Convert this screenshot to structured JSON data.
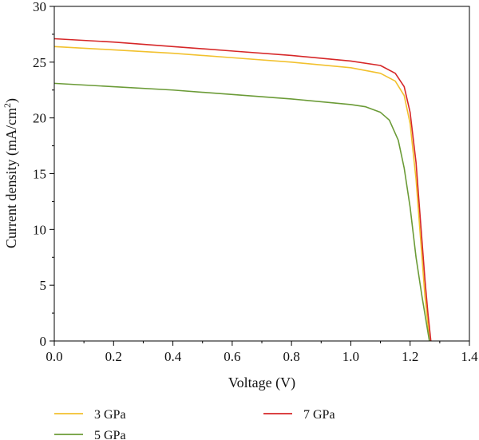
{
  "chart_data": {
    "type": "line",
    "xlabel": "Voltage (V)",
    "ylabel_main": "Current density (mA/cm",
    "ylabel_sup": "2",
    "ylabel_end": ")",
    "xlim": [
      0.0,
      1.4
    ],
    "ylim": [
      0,
      30
    ],
    "xticks": [
      0.0,
      0.2,
      0.4,
      0.6,
      0.8,
      1.0,
      1.2,
      1.4
    ],
    "xtick_labels": [
      "0.0",
      "0.2",
      "0.4",
      "0.6",
      "0.8",
      "1.0",
      "1.2",
      "1.4"
    ],
    "yticks": [
      0,
      5,
      10,
      15,
      20,
      25,
      30
    ],
    "ytick_labels": [
      "0",
      "5",
      "10",
      "15",
      "20",
      "25",
      "30"
    ],
    "grid": false,
    "legend_position": "bottom",
    "series": [
      {
        "name": "3 GPa",
        "color": "#f2c12e",
        "x": [
          0.0,
          0.2,
          0.4,
          0.6,
          0.8,
          1.0,
          1.1,
          1.15,
          1.18,
          1.2,
          1.22,
          1.24,
          1.25,
          1.26,
          1.265
        ],
        "y": [
          26.4,
          26.1,
          25.8,
          25.4,
          25.0,
          24.5,
          24.0,
          23.3,
          22.0,
          19.5,
          14.5,
          7.5,
          4.0,
          1.5,
          0.0
        ]
      },
      {
        "name": "7 GPa",
        "color": "#d62728",
        "x": [
          0.0,
          0.2,
          0.4,
          0.6,
          0.8,
          1.0,
          1.1,
          1.15,
          1.18,
          1.2,
          1.22,
          1.24,
          1.25,
          1.26,
          1.27
        ],
        "y": [
          27.1,
          26.8,
          26.4,
          26.0,
          25.6,
          25.1,
          24.7,
          24.0,
          22.8,
          20.5,
          16.0,
          9.0,
          5.5,
          2.5,
          0.0
        ]
      },
      {
        "name": "5 GPa",
        "color": "#6b9b37",
        "x": [
          0.0,
          0.2,
          0.4,
          0.6,
          0.8,
          1.0,
          1.05,
          1.1,
          1.13,
          1.16,
          1.18,
          1.2,
          1.22,
          1.24,
          1.26,
          1.265
        ],
        "y": [
          23.1,
          22.8,
          22.5,
          22.1,
          21.7,
          21.2,
          21.0,
          20.5,
          19.8,
          18.0,
          15.5,
          12.0,
          7.5,
          4.0,
          0.8,
          0.0
        ]
      }
    ],
    "legend_order": [
      0,
      1,
      2
    ]
  }
}
